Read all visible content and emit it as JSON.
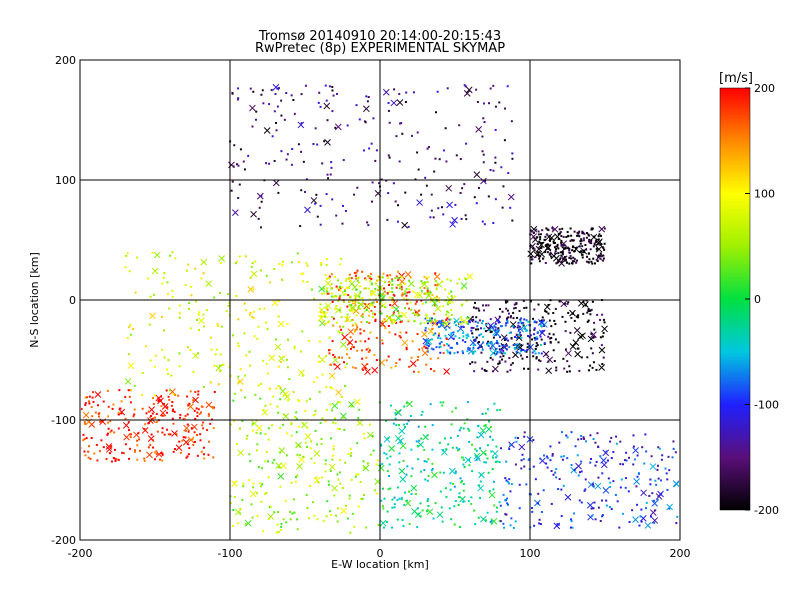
{
  "chart_data": {
    "type": "scatter",
    "title": "Tromsø 20140910 20:14:00-20:15:43",
    "subtitle": "RwPretec (8p) EXPERIMENTAL SKYMAP",
    "xlabel": "E-W location [km]",
    "ylabel": "N-S location [km]",
    "xlim": [
      -200,
      200
    ],
    "ylim": [
      -200,
      200
    ],
    "x_ticks": [
      "-200",
      "-100",
      "0",
      "100",
      "200"
    ],
    "y_ticks": [
      "-200",
      "-100",
      "0",
      "100",
      "200"
    ],
    "grid": true,
    "colorbar": {
      "label": "[m/s]",
      "range": [
        -200,
        200
      ],
      "ticks": [
        "200",
        "100",
        "0",
        "-100",
        "-200"
      ],
      "colormap": "rainbow (black at -200, red at 200)"
    },
    "markers": [
      "dot",
      "x"
    ],
    "clusters": [
      {
        "region": "south-west",
        "x_range": [
          -200,
          -110
        ],
        "y_range": [
          -135,
          -75
        ],
        "velocity": 190
      },
      {
        "region": "south-centre",
        "x_range": [
          -100,
          0
        ],
        "y_range": [
          -195,
          -80
        ],
        "velocity": 60
      },
      {
        "region": "south-east",
        "x_range": [
          0,
          80
        ],
        "y_range": [
          -190,
          -85
        ],
        "velocity": -20
      },
      {
        "region": "far south-east",
        "x_range": [
          80,
          200
        ],
        "y_range": [
          -190,
          -110
        ],
        "velocity": -100
      },
      {
        "region": "north",
        "x_range": [
          -100,
          90
        ],
        "y_range": [
          60,
          180
        ],
        "velocity": -150
      },
      {
        "region": "north-east",
        "x_range": [
          100,
          150
        ],
        "y_range": [
          30,
          60
        ],
        "velocity": -200
      },
      {
        "region": "east",
        "x_range": [
          60,
          150
        ],
        "y_range": [
          -60,
          0
        ],
        "velocity": -190
      },
      {
        "region": "centre-east",
        "x_range": [
          30,
          110
        ],
        "y_range": [
          -45,
          -15
        ],
        "velocity": -80
      },
      {
        "region": "centre",
        "x_range": [
          -35,
          45
        ],
        "y_range": [
          -60,
          25
        ],
        "velocity": 170
      },
      {
        "region": "centre band",
        "x_range": [
          -40,
          60
        ],
        "y_range": [
          -20,
          20
        ],
        "velocity": 60
      },
      {
        "region": "west",
        "x_range": [
          -170,
          -20
        ],
        "y_range": [
          -80,
          40
        ],
        "velocity": 80
      }
    ]
  }
}
